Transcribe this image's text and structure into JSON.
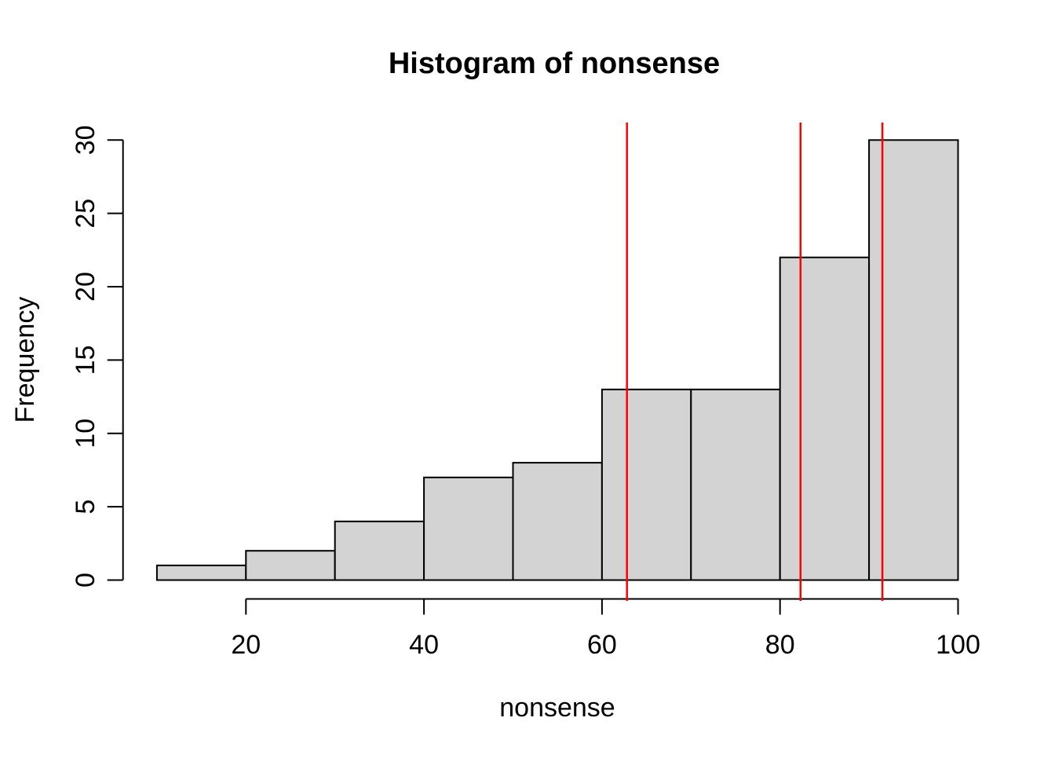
{
  "window": {
    "background": "#FFFFFF"
  },
  "chart_data": {
    "type": "bar",
    "subtype": "histogram",
    "title": "Histogram of nonsense",
    "xlabel": "nonsense",
    "ylabel": "Frequency",
    "bin_edges": [
      10,
      20,
      30,
      40,
      50,
      60,
      70,
      80,
      90,
      100
    ],
    "counts": [
      1,
      2,
      4,
      7,
      8,
      13,
      13,
      22,
      30
    ],
    "x_ticks": [
      20,
      40,
      60,
      80,
      100
    ],
    "y_ticks": [
      0,
      5,
      10,
      15,
      20,
      25,
      30
    ],
    "xlim": [
      10,
      100
    ],
    "ylim": [
      0,
      30
    ],
    "grid": false,
    "legend": false,
    "bar_fill": "#D3D3D3",
    "bar_stroke": "#000000",
    "axis_color": "#000000",
    "text_color": "#000000",
    "vline_color": "#FF0000",
    "vline_values": [
      62.8,
      82.3,
      91.5
    ]
  }
}
